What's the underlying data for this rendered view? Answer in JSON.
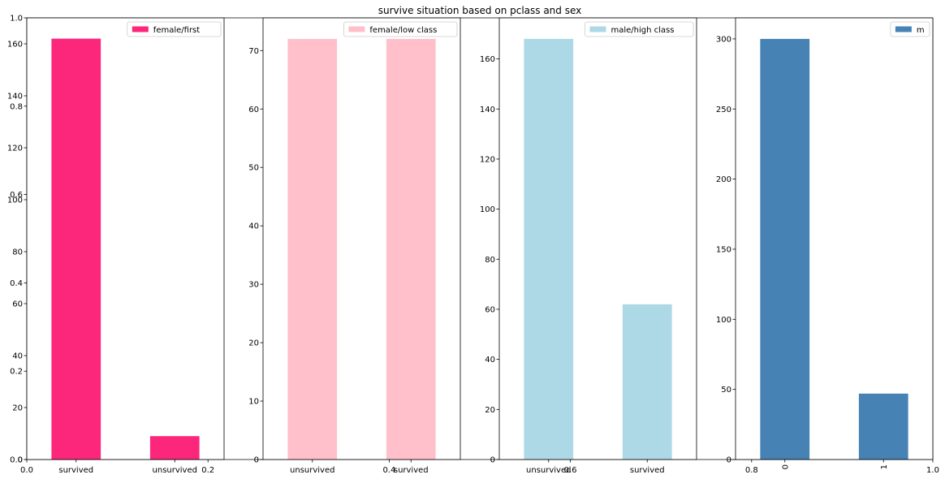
{
  "figure": {
    "title": "survive situation based on pclass and sex",
    "background_axis": {
      "yticks": [
        "0.0",
        "0.2",
        "0.4",
        "0.6",
        "0.8",
        "1.0"
      ],
      "xticks": [
        "0.0",
        "0.2",
        "0.4",
        "0.6",
        "0.8",
        "1.0"
      ]
    }
  },
  "chart_data": [
    {
      "type": "bar",
      "legend": "female/first",
      "color": "#fc267a",
      "categories": [
        "survived",
        "unsurvived"
      ],
      "values": [
        162,
        9
      ],
      "ylim": [
        0,
        170
      ],
      "yticks": [
        0,
        20,
        40,
        60,
        80,
        100,
        120,
        140,
        160
      ],
      "rotate_xticks": false
    },
    {
      "type": "bar",
      "legend": "female/low class",
      "color": "#ffc0cb",
      "categories": [
        "unsurvived",
        "survived"
      ],
      "values": [
        72,
        72
      ],
      "ylim": [
        0,
        75.6
      ],
      "yticks": [
        0,
        10,
        20,
        30,
        40,
        50,
        60,
        70
      ],
      "rotate_xticks": false
    },
    {
      "type": "bar",
      "legend": "male/high class",
      "color": "#add8e6",
      "categories": [
        "unsurvived",
        "survived"
      ],
      "values": [
        168,
        62
      ],
      "ylim": [
        0,
        176.4
      ],
      "yticks": [
        0,
        20,
        40,
        60,
        80,
        100,
        120,
        140,
        160
      ],
      "rotate_xticks": false
    },
    {
      "type": "bar",
      "legend": "m",
      "color": "#4682b4",
      "categories": [
        "0",
        "1"
      ],
      "values": [
        300,
        47
      ],
      "ylim": [
        0,
        315
      ],
      "yticks": [
        0,
        50,
        100,
        150,
        200,
        250,
        300
      ],
      "rotate_xticks": true
    }
  ]
}
